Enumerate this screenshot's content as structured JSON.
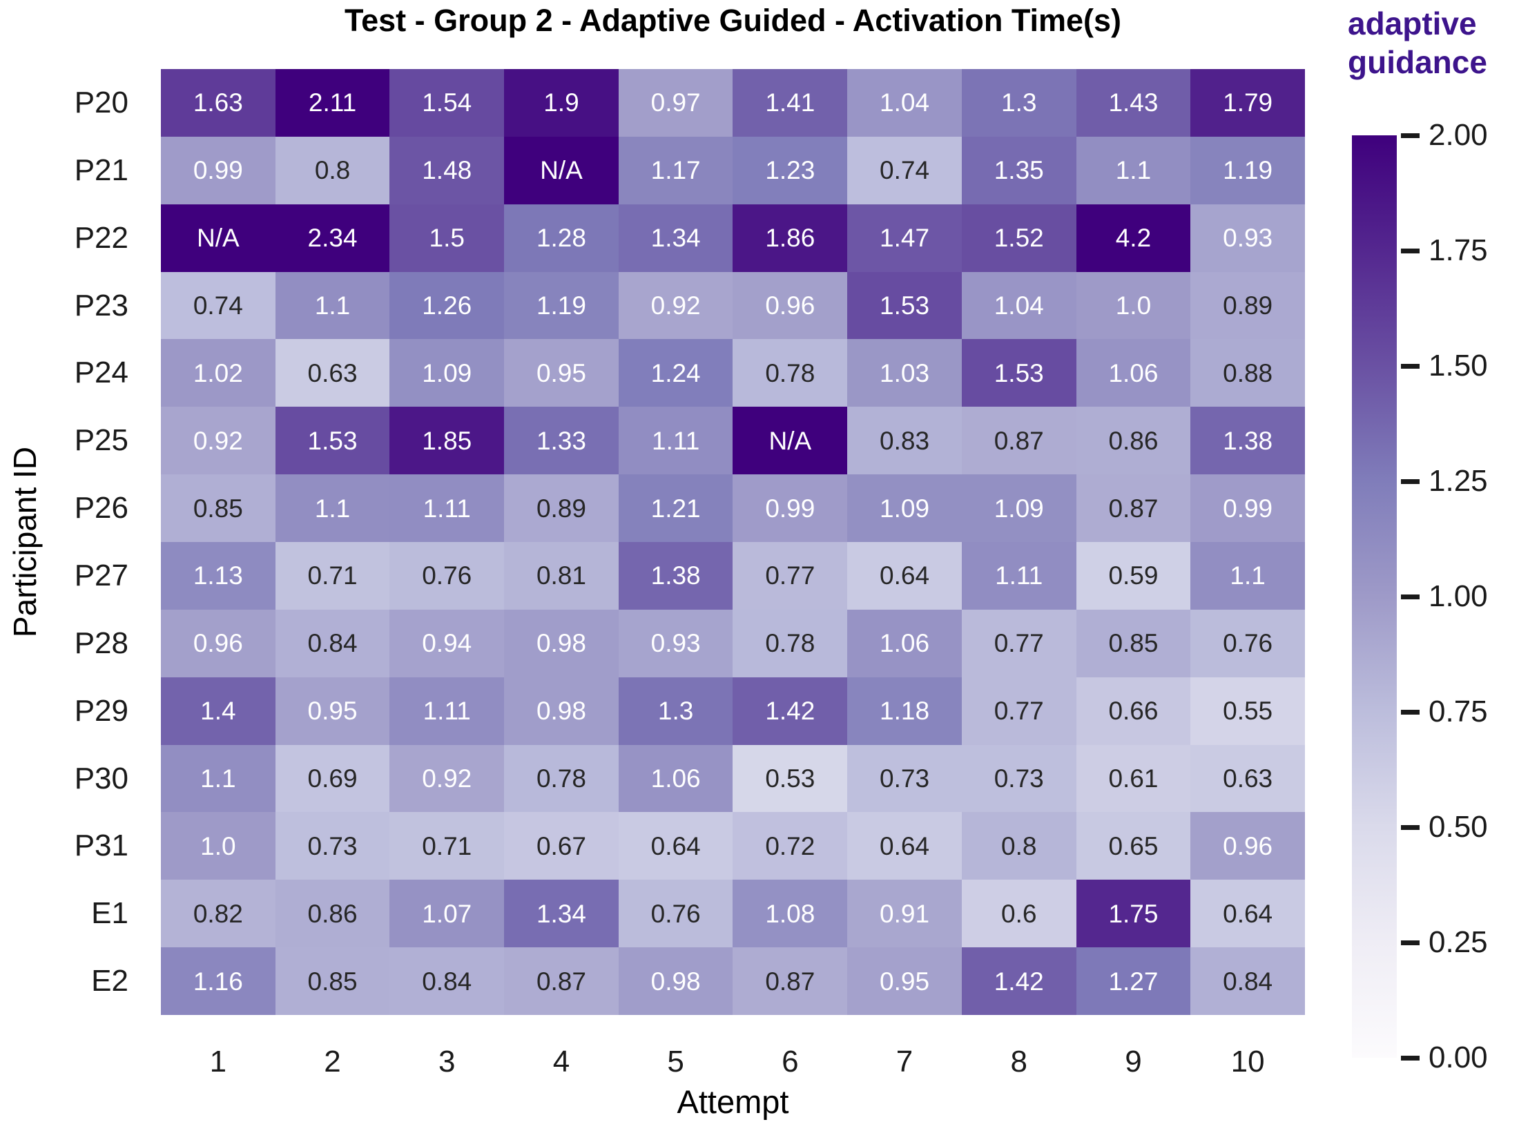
{
  "chart_data": {
    "type": "heatmap",
    "title": "Test - Group 2 - Adaptive Guided - Activation Time(s)",
    "xlabel": "Attempt",
    "ylabel": "Participant ID",
    "x_ticklabels": [
      "1",
      "2",
      "3",
      "4",
      "5",
      "6",
      "7",
      "8",
      "9",
      "10"
    ],
    "y_ticklabels": [
      "P20",
      "P21",
      "P22",
      "P23",
      "P24",
      "P25",
      "P26",
      "P27",
      "P28",
      "P29",
      "P30",
      "P31",
      "E1",
      "E2"
    ],
    "values": [
      [
        "1.63",
        "2.11",
        "1.54",
        "1.9",
        "0.97",
        "1.41",
        "1.04",
        "1.3",
        "1.43",
        "1.79"
      ],
      [
        "0.99",
        "0.8",
        "1.48",
        "N/A",
        "1.17",
        "1.23",
        "0.74",
        "1.35",
        "1.1",
        "1.19"
      ],
      [
        "N/A",
        "2.34",
        "1.5",
        "1.28",
        "1.34",
        "1.86",
        "1.47",
        "1.52",
        "4.2",
        "0.93"
      ],
      [
        "0.74",
        "1.1",
        "1.26",
        "1.19",
        "0.92",
        "0.96",
        "1.53",
        "1.04",
        "1.0",
        "0.89"
      ],
      [
        "1.02",
        "0.63",
        "1.09",
        "0.95",
        "1.24",
        "0.78",
        "1.03",
        "1.53",
        "1.06",
        "0.88"
      ],
      [
        "0.92",
        "1.53",
        "1.85",
        "1.33",
        "1.11",
        "N/A",
        "0.83",
        "0.87",
        "0.86",
        "1.38"
      ],
      [
        "0.85",
        "1.1",
        "1.11",
        "0.89",
        "1.21",
        "0.99",
        "1.09",
        "1.09",
        "0.87",
        "0.99"
      ],
      [
        "1.13",
        "0.71",
        "0.76",
        "0.81",
        "1.38",
        "0.77",
        "0.64",
        "1.11",
        "0.59",
        "1.1"
      ],
      [
        "0.96",
        "0.84",
        "0.94",
        "0.98",
        "0.93",
        "0.78",
        "1.06",
        "0.77",
        "0.85",
        "0.76"
      ],
      [
        "1.4",
        "0.95",
        "1.11",
        "0.98",
        "1.3",
        "1.42",
        "1.18",
        "0.77",
        "0.66",
        "0.55"
      ],
      [
        "1.1",
        "0.69",
        "0.92",
        "0.78",
        "1.06",
        "0.53",
        "0.73",
        "0.73",
        "0.61",
        "0.63"
      ],
      [
        "1.0",
        "0.73",
        "0.71",
        "0.67",
        "0.64",
        "0.72",
        "0.64",
        "0.8",
        "0.65",
        "0.96"
      ],
      [
        "0.82",
        "0.86",
        "1.07",
        "1.34",
        "0.76",
        "1.08",
        "0.91",
        "0.6",
        "1.75",
        "0.64"
      ],
      [
        "1.16",
        "0.85",
        "0.84",
        "0.87",
        "0.98",
        "0.87",
        "0.95",
        "1.42",
        "1.27",
        "0.84"
      ]
    ],
    "missing_value_text": "N/A",
    "vmin": 0,
    "vmax": 2,
    "grid": false,
    "legend_position": "right-colorbar",
    "colormap": {
      "name": "Purples",
      "anchors": [
        "#fcfbfd",
        "#efedf5",
        "#dadaeb",
        "#bcbddc",
        "#9e9ac8",
        "#807dba",
        "#6a51a3",
        "#54278f",
        "#3f007d"
      ]
    },
    "annotation_text_colors": {
      "light": "#ffffff",
      "dark": "#262626"
    },
    "colorbar": {
      "label": "adaptive guidance",
      "label_color": "#3d148c",
      "ticks": [
        "2.00",
        "1.75",
        "1.50",
        "1.25",
        "1.00",
        "0.75",
        "0.50",
        "0.25",
        "0.00"
      ]
    }
  }
}
